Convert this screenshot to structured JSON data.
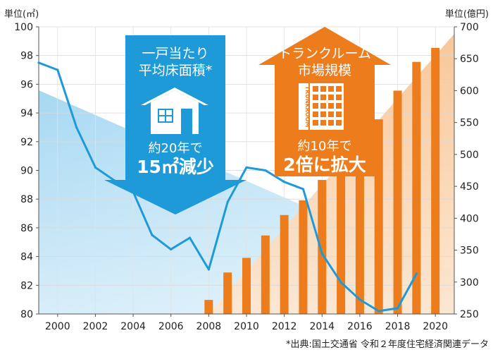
{
  "chart_data": {
    "type": "bar",
    "left_axis": {
      "unit": "単位(㎡)",
      "ylim": [
        80,
        100
      ],
      "ticks": [
        80,
        82,
        84,
        86,
        88,
        90,
        92,
        94,
        96,
        98,
        100
      ]
    },
    "right_axis": {
      "unit": "単位(億円)",
      "ylim": [
        250,
        700
      ],
      "ticks": [
        250,
        300,
        350,
        400,
        450,
        500,
        550,
        600,
        650,
        700
      ]
    },
    "x_range": [
      1999,
      2021
    ],
    "x_ticks": [
      "2000",
      "2002",
      "2004",
      "2006",
      "2008",
      "2010",
      "2012",
      "2014",
      "2016",
      "2018",
      "2020"
    ],
    "series": [
      {
        "name": "平均床面積",
        "type": "line",
        "axis": "left",
        "color": "#1d9ad7",
        "x": [
          1999,
          2000,
          2001,
          2002,
          2003,
          2004,
          2005,
          2006,
          2007,
          2008,
          2009,
          2010,
          2011,
          2012,
          2013,
          2014,
          2015,
          2016,
          2017,
          2018,
          2019
        ],
        "values": [
          97.5,
          97.0,
          93.0,
          90.2,
          89.3,
          88.5,
          85.5,
          84.5,
          85.3,
          83.1,
          87.8,
          90.2,
          90.0,
          89.2,
          88.7,
          84.2,
          82.2,
          81.0,
          80.2,
          80.4,
          82.8
        ]
      },
      {
        "name": "トランクルーム市場規模",
        "type": "bar",
        "axis": "right",
        "color": "#ec7c1c",
        "x": [
          2008,
          2009,
          2010,
          2011,
          2012,
          2013,
          2014,
          2015,
          2016,
          2017,
          2018,
          2019,
          2020
        ],
        "values": [
          272,
          315,
          338,
          373,
          405,
          428,
          460,
          468,
          473,
          555,
          600,
          645,
          667
        ]
      }
    ],
    "callout_floor_area": {
      "title": "一戸当たり\n平均床面積*",
      "text_prefix": "約20年で",
      "text_main": "15㎡減少",
      "color": "#1d9ad7"
    },
    "callout_trunk_room": {
      "title": "トランクルーム\n市場規模",
      "text_prefix": "約10年で",
      "text_main": "2倍に拡大",
      "building_label": "TRUNKROOM",
      "color": "#ec7c1c"
    },
    "source": "*出典:国土交通省 令和２年度住宅経済関連データ"
  }
}
